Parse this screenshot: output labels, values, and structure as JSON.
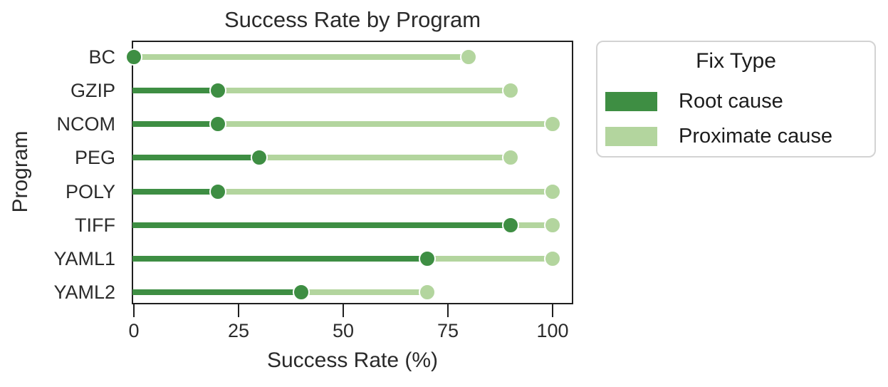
{
  "page": {
    "background": "#ffffff"
  },
  "chart_data": {
    "type": "scatter",
    "subtype": "dumbbell-lollipop",
    "title": "Success Rate by Program",
    "xlabel": "Success Rate (%)",
    "ylabel": "Program",
    "categories": [
      "BC",
      "GZIP",
      "NCOM",
      "PEG",
      "POLY",
      "TIFF",
      "YAML1",
      "YAML2"
    ],
    "series": [
      {
        "name": "Root cause",
        "color": "#3e8e43",
        "values": [
          0,
          20,
          20,
          30,
          20,
          90,
          70,
          40
        ]
      },
      {
        "name": "Proximate cause",
        "color": "#b3d59e",
        "values": [
          80,
          90,
          100,
          90,
          100,
          100,
          100,
          70
        ]
      }
    ],
    "x_ticks": [
      0,
      25,
      50,
      75,
      100
    ],
    "xlim": [
      0,
      105
    ],
    "grid": false,
    "legend": {
      "title": "Fix Type",
      "entries": [
        "Root cause",
        "Proximate cause"
      ],
      "position": "outside-upper-right"
    }
  },
  "colors": {
    "root_cause": "#3e8e43",
    "proximate_cause": "#b3d59e",
    "axis_frame": "#1f1f1f",
    "text": "#262626",
    "legend_border": "#d3d3d3"
  }
}
